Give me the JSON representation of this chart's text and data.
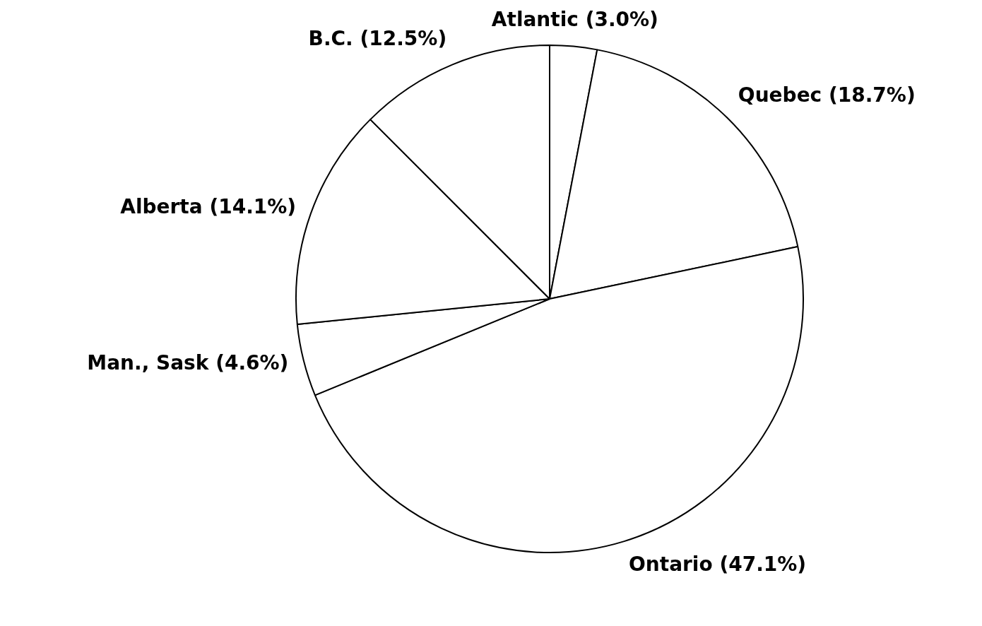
{
  "chart_data": {
    "type": "pie",
    "categories": [
      "Atlantic",
      "Quebec",
      "Ontario",
      "Man., Sask",
      "Alberta",
      "B.C."
    ],
    "values": [
      3.0,
      18.7,
      47.1,
      4.6,
      14.1,
      12.5
    ],
    "value_labels": [
      "(3.0%)",
      "(18.7%)",
      "(47.1%)",
      "(4.6%)",
      "(14.1%)",
      "(12.5%)"
    ],
    "colors": [
      "#ffffff",
      "#ffffff",
      "#ffffff",
      "#ffffff",
      "#ffffff",
      "#ffffff"
    ],
    "legend": false
  }
}
